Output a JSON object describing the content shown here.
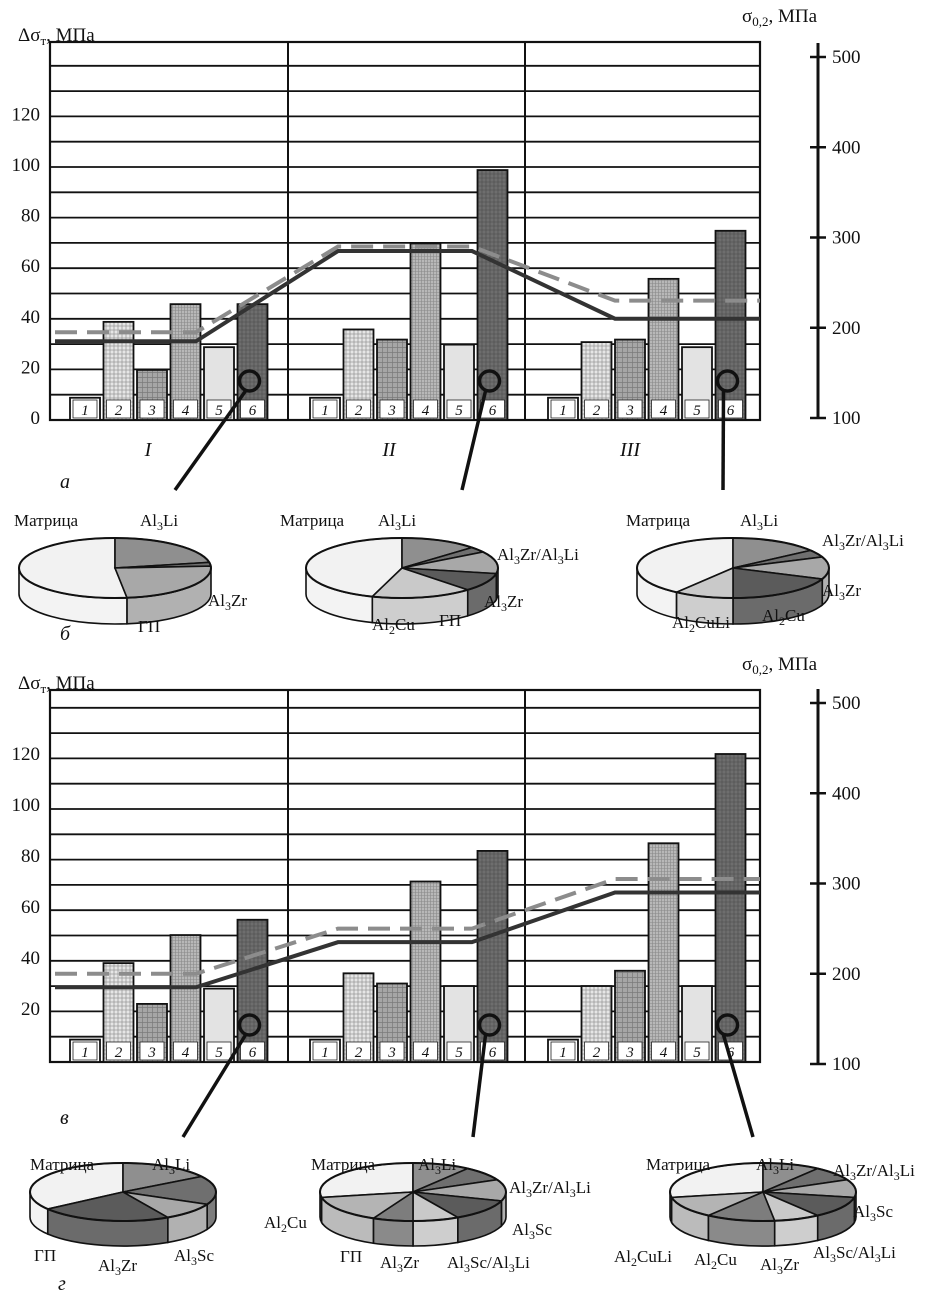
{
  "panel_letters": [
    "а",
    "б",
    "в",
    "г"
  ],
  "colors": {
    "line_measured": "#333333",
    "line_calculated": "#8c8c8c",
    "bar_fills": [
      "#ffffff",
      "#e6e6e6",
      "#a6a6a6",
      "#b8b8b8",
      "#e3e3e3",
      "#6e6e6e"
    ],
    "pie_fills": [
      "#f2f2f2",
      "#8f8f8f",
      "#6f6f6f",
      "#a8a8a8",
      "#5b5b5b",
      "#c9c9c9",
      "#7d7d7d",
      "#b4b4b4"
    ]
  },
  "chart_data": [
    {
      "type": "bar",
      "panel": "а",
      "left_axis_label": "Δσт, МПа",
      "right_axis_label": "σ0,2, МПа",
      "left_ticks": [
        0,
        20,
        40,
        60,
        80,
        100,
        120
      ],
      "right_ticks": [
        100,
        200,
        300,
        400,
        500
      ],
      "ylim_left": [
        0,
        140
      ],
      "ylim_right": [
        100,
        500
      ],
      "groups": [
        "I",
        "II",
        "III"
      ],
      "bar_labels": [
        "1",
        "2",
        "3",
        "4",
        "5",
        "6"
      ],
      "values": [
        [
          8,
          38,
          19,
          45,
          28,
          45
        ],
        [
          8,
          35,
          31,
          69,
          29,
          98
        ],
        [
          8,
          30,
          31,
          55,
          28,
          74
        ]
      ],
      "lines": [
        {
          "style": "solid",
          "values": [
            185,
            185,
            285,
            285,
            210,
            210
          ]
        },
        {
          "style": "dashed",
          "values": [
            195,
            195,
            290,
            290,
            230,
            230
          ]
        }
      ],
      "grid": true
    },
    {
      "type": "bar",
      "panel": "в",
      "left_axis_label": "Δσт, МПа",
      "right_axis_label": "σ0,2, МПа",
      "left_ticks": [
        20,
        40,
        60,
        80,
        100,
        120
      ],
      "right_ticks": [
        100,
        200,
        300,
        400,
        500
      ],
      "ylim_left": [
        0,
        140
      ],
      "ylim_right": [
        100,
        500
      ],
      "groups": [
        "I",
        "II",
        "III"
      ],
      "bar_labels": [
        "1",
        "2",
        "3",
        "4",
        "5",
        "6"
      ],
      "values": [
        [
          8,
          38,
          22,
          49,
          28,
          55
        ],
        [
          8,
          34,
          30,
          70,
          29,
          82
        ],
        [
          8,
          29,
          35,
          85,
          29,
          120
        ]
      ],
      "lines": [
        {
          "style": "solid",
          "values": [
            185,
            185,
            235,
            235,
            290,
            290
          ]
        },
        {
          "style": "dashed",
          "values": [
            200,
            200,
            250,
            250,
            305,
            305
          ]
        }
      ],
      "grid": true
    },
    {
      "type": "pie",
      "panel": "б",
      "pies": [
        {
          "labels": [
            "Матрица",
            "Al3Li",
            "Al3Zr",
            "ГП"
          ],
          "values": [
            52,
            22,
            2,
            24
          ]
        },
        {
          "labels": [
            "Матрица",
            "Al3Li",
            "Al3Zr/Al3Li",
            "Al3Zr",
            "ГП",
            "Al2Cu"
          ],
          "values": [
            45,
            13,
            3,
            12,
            10,
            17
          ]
        },
        {
          "labels": [
            "Матрица",
            "Al3Li",
            "Al3Zr/Al3Li",
            "Al3Zr",
            "Al2Cu",
            "Al2CuLi"
          ],
          "values": [
            40,
            15,
            4,
            12,
            19,
            10
          ]
        }
      ]
    },
    {
      "type": "pie",
      "panel": "г",
      "pies": [
        {
          "labels": [
            "Матрица",
            "Al3Li",
            "Al3Sc",
            "Al3Zr",
            "ГП"
          ],
          "values": [
            35,
            16,
            16,
            10,
            23
          ]
        },
        {
          "labels": [
            "Матрица",
            "Al3Li",
            "Al3Zr/Al3Li",
            "Al3Sc",
            "Al3Sc/Al3Li",
            "Al3Zr",
            "ГП",
            "Al2Cu"
          ],
          "values": [
            28,
            10,
            8,
            12,
            12,
            8,
            7,
            15
          ]
        },
        {
          "labels": [
            "Матрица",
            "Al3Li",
            "Al3Zr/Al3Li",
            "Al3Sc",
            "Al3Sc/Al3Li",
            "Al3Zr",
            "Al2Cu",
            "Al2CuLi"
          ],
          "values": [
            28,
            10,
            8,
            10,
            12,
            8,
            12,
            12
          ]
        }
      ]
    }
  ]
}
